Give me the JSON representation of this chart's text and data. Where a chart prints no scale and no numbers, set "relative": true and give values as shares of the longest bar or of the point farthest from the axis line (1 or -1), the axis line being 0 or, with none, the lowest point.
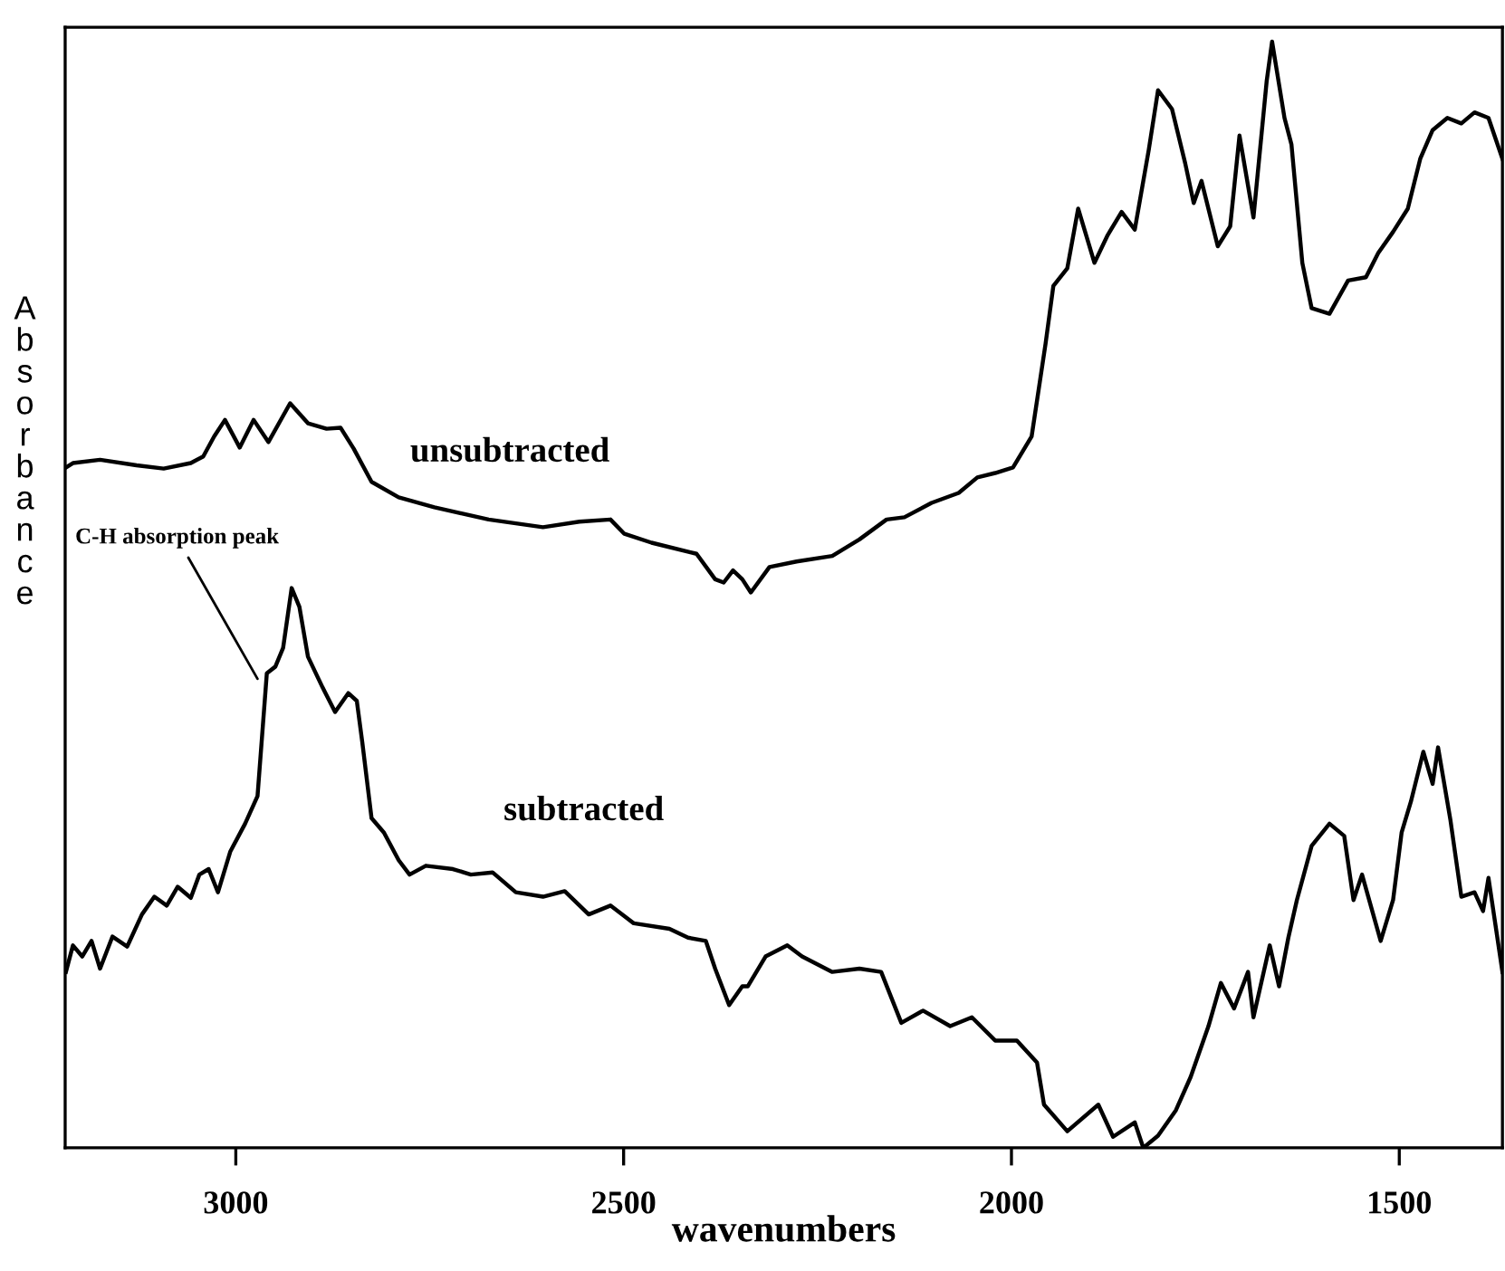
{
  "chart_data": {
    "type": "line",
    "relative": true,
    "xlabel": "wavenumbers",
    "ylabel": "Absorbance",
    "xlim": [
      3220,
      1367
    ],
    "xticks": [
      3000,
      2500,
      2000,
      1500
    ],
    "grid": false,
    "legend": false,
    "marker": "none",
    "line_style": "solid",
    "annotations": [
      {
        "text": "C-H absorption peak",
        "x": 2972,
        "y": 0.424
      }
    ],
    "series": [
      {
        "name": "unsubtracted",
        "color": "#000000",
        "x": [
          3219,
          3210,
          3175,
          3128,
          3093,
          3058,
          3042,
          3028,
          3014,
          2995,
          2977,
          2958,
          2930,
          2907,
          2883,
          2865,
          2848,
          2825,
          2790,
          2744,
          2674,
          2604,
          2557,
          2517,
          2499,
          2464,
          2406,
          2382,
          2371,
          2359,
          2347,
          2336,
          2312,
          2277,
          2231,
          2196,
          2161,
          2138,
          2103,
          2068,
          2044,
          2021,
          1998,
          1974,
          1956,
          1946,
          1928,
          1914,
          1893,
          1876,
          1858,
          1841,
          1823,
          1811,
          1793,
          1776,
          1765,
          1755,
          1734,
          1718,
          1706,
          1688,
          1671,
          1664,
          1648,
          1639,
          1625,
          1613,
          1590,
          1566,
          1543,
          1527,
          1508,
          1489,
          1473,
          1457,
          1438,
          1420,
          1403,
          1385,
          1367
        ],
        "values": [
          0.615,
          0.619,
          0.622,
          0.617,
          0.614,
          0.619,
          0.625,
          0.643,
          0.658,
          0.633,
          0.658,
          0.638,
          0.673,
          0.655,
          0.65,
          0.651,
          0.632,
          0.602,
          0.588,
          0.579,
          0.568,
          0.561,
          0.566,
          0.568,
          0.555,
          0.547,
          0.537,
          0.514,
          0.511,
          0.522,
          0.514,
          0.502,
          0.525,
          0.53,
          0.535,
          0.55,
          0.568,
          0.57,
          0.583,
          0.592,
          0.606,
          0.61,
          0.615,
          0.643,
          0.727,
          0.779,
          0.795,
          0.849,
          0.8,
          0.825,
          0.846,
          0.83,
          0.902,
          0.956,
          0.939,
          0.89,
          0.854,
          0.874,
          0.815,
          0.833,
          0.915,
          0.841,
          0.964,
          1.0,
          0.931,
          0.907,
          0.8,
          0.759,
          0.754,
          0.784,
          0.787,
          0.809,
          0.828,
          0.849,
          0.894,
          0.92,
          0.931,
          0.926,
          0.936,
          0.931,
          0.894
        ]
      },
      {
        "name": "subtracted",
        "color": "#000000",
        "x": [
          3219,
          3210,
          3198,
          3186,
          3175,
          3159,
          3140,
          3121,
          3105,
          3089,
          3075,
          3058,
          3047,
          3035,
          3023,
          3007,
          2988,
          2972,
          2960,
          2949,
          2939,
          2928,
          2918,
          2907,
          2888,
          2872,
          2855,
          2844,
          2837,
          2825,
          2809,
          2790,
          2776,
          2755,
          2720,
          2697,
          2669,
          2639,
          2604,
          2576,
          2545,
          2517,
          2487,
          2441,
          2417,
          2394,
          2382,
          2364,
          2347,
          2340,
          2317,
          2289,
          2270,
          2231,
          2196,
          2168,
          2142,
          2114,
          2079,
          2051,
          2021,
          1993,
          1967,
          1958,
          1928,
          1888,
          1869,
          1841,
          1830,
          1811,
          1788,
          1769,
          1746,
          1730,
          1713,
          1695,
          1688,
          1667,
          1655,
          1643,
          1632,
          1613,
          1590,
          1571,
          1559,
          1548,
          1524,
          1508,
          1497,
          1485,
          1469,
          1457,
          1450,
          1434,
          1420,
          1403,
          1392,
          1385,
          1367
        ],
        "values": [
          0.159,
          0.183,
          0.173,
          0.187,
          0.162,
          0.191,
          0.182,
          0.211,
          0.227,
          0.219,
          0.236,
          0.226,
          0.247,
          0.252,
          0.231,
          0.268,
          0.293,
          0.318,
          0.429,
          0.435,
          0.452,
          0.506,
          0.489,
          0.444,
          0.416,
          0.394,
          0.411,
          0.404,
          0.367,
          0.298,
          0.285,
          0.26,
          0.247,
          0.255,
          0.252,
          0.247,
          0.249,
          0.231,
          0.227,
          0.232,
          0.211,
          0.219,
          0.203,
          0.198,
          0.19,
          0.187,
          0.162,
          0.129,
          0.146,
          0.146,
          0.173,
          0.183,
          0.173,
          0.159,
          0.162,
          0.159,
          0.113,
          0.124,
          0.11,
          0.118,
          0.097,
          0.097,
          0.077,
          0.039,
          0.015,
          0.039,
          0.01,
          0.023,
          0.0,
          0.011,
          0.034,
          0.064,
          0.11,
          0.149,
          0.126,
          0.159,
          0.118,
          0.183,
          0.146,
          0.19,
          0.224,
          0.273,
          0.293,
          0.282,
          0.224,
          0.247,
          0.187,
          0.224,
          0.285,
          0.313,
          0.358,
          0.329,
          0.362,
          0.296,
          0.227,
          0.231,
          0.214,
          0.244,
          0.159
        ]
      }
    ]
  }
}
